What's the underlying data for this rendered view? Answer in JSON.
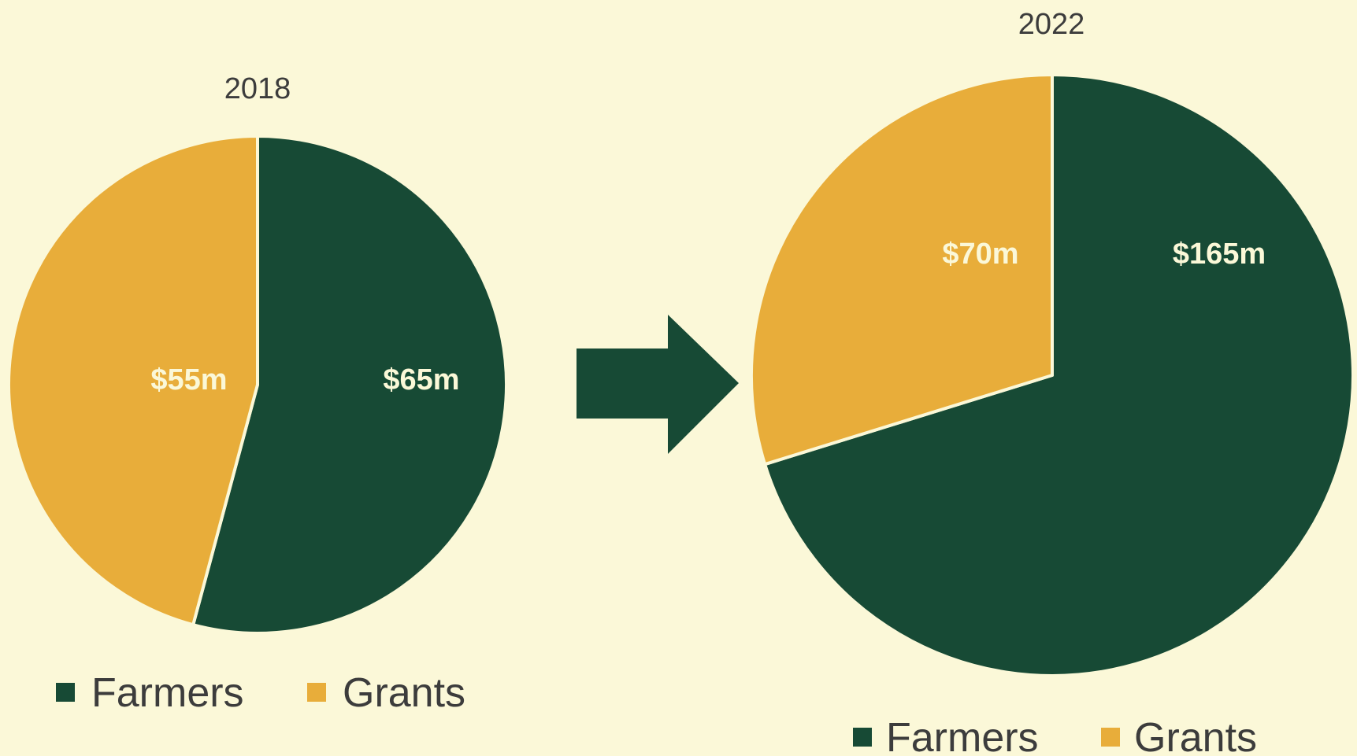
{
  "colors": {
    "background": "#fbf8d8",
    "farmers": "#174a35",
    "grants": "#e8ad3a",
    "arrow": "#174a35",
    "slice_border": "#fbf8d8"
  },
  "chart_data": [
    {
      "type": "pie",
      "title": "2018",
      "slices": [
        {
          "name": "Farmers",
          "value": 65,
          "label": "$65m"
        },
        {
          "name": "Grants",
          "value": 55,
          "label": "$55m"
        }
      ],
      "legend": {
        "placement": "bottom",
        "entries": [
          "Farmers",
          "Grants"
        ]
      }
    },
    {
      "type": "pie",
      "title": "2022",
      "slices": [
        {
          "name": "Farmers",
          "value": 165,
          "label": "$165m"
        },
        {
          "name": "Grants",
          "value": 70,
          "label": "$70m"
        }
      ],
      "legend": {
        "placement": "bottom",
        "entries": [
          "Farmers",
          "Grants"
        ]
      }
    }
  ],
  "arrow": {
    "direction": "right",
    "icon": "arrow-right-icon"
  }
}
